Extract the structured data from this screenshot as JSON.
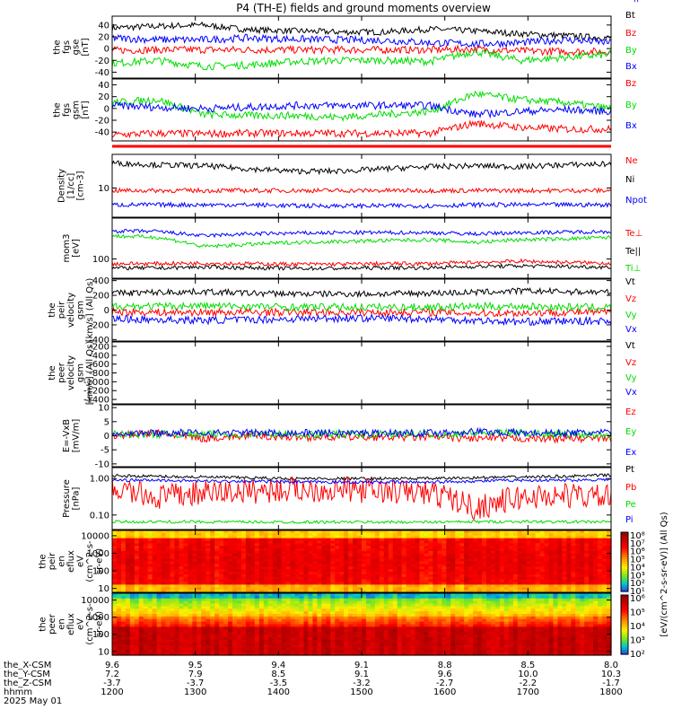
{
  "title": "P4 (TH-E) fields and ground moments overview",
  "colors": {
    "black": "#000000",
    "red": "#ff0000",
    "green": "#00dd00",
    "blue": "#0000ff"
  },
  "chart_data": [
    {
      "type": "line",
      "panel": "fgs_gse",
      "ylabel": [
        "the",
        "fgs",
        "gse",
        "[nT]"
      ],
      "ylim": [
        -50,
        55
      ],
      "ytick_labels": [
        "40",
        "20",
        "0",
        "-20",
        "-40"
      ],
      "ytick_values": [
        40,
        20,
        0,
        -20,
        -40
      ],
      "series": [
        {
          "name": "Bt",
          "color": "black",
          "level": [
            35,
            38,
            40,
            32,
            30,
            28,
            28,
            33,
            30,
            25,
            22,
            18
          ]
        },
        {
          "name": "Bz",
          "color": "red",
          "level": [
            -3,
            -2,
            -2,
            -2,
            -2,
            -2,
            -2,
            -2,
            -1,
            -4,
            -5,
            -5
          ]
        },
        {
          "name": "By",
          "color": "green",
          "level": [
            -25,
            -20,
            -30,
            -28,
            -22,
            -20,
            -20,
            -22,
            -5,
            -20,
            -15,
            -10
          ]
        },
        {
          "name": "Bx",
          "color": "blue",
          "level": [
            18,
            15,
            15,
            18,
            16,
            15,
            14,
            10,
            8,
            10,
            15,
            10
          ]
        }
      ]
    },
    {
      "type": "line",
      "panel": "fgs_gsm",
      "ylabel": [
        "the",
        "fgs",
        "gsm",
        "[nT]"
      ],
      "ylim": [
        -55,
        50
      ],
      "ytick_labels": [
        "40",
        "20",
        "0",
        "-20",
        "-40"
      ],
      "ytick_values": [
        40,
        20,
        0,
        -20,
        -40
      ],
      "series": [
        {
          "name": "Bz",
          "color": "red",
          "level": [
            -45,
            -42,
            -43,
            -42,
            -42,
            -42,
            -42,
            -42,
            -25,
            -32,
            -35,
            -35
          ]
        },
        {
          "name": "By",
          "color": "green",
          "level": [
            10,
            15,
            -10,
            -12,
            -12,
            -15,
            -10,
            -5,
            25,
            15,
            10,
            0
          ]
        },
        {
          "name": "Bx",
          "color": "blue",
          "level": [
            5,
            2,
            0,
            2,
            5,
            5,
            5,
            5,
            -10,
            -5,
            -2,
            -5
          ]
        }
      ]
    },
    {
      "type": "line",
      "panel": "density",
      "ylabel": [
        "Density",
        "[1/cc]",
        "[cm-3]"
      ],
      "log": true,
      "ylim": [
        3,
        40
      ],
      "ytick_labels": [
        "10"
      ],
      "ytick_values": [
        10
      ],
      "series": [
        {
          "name": "Ne",
          "color": "red",
          "level": [
            9,
            9,
            9,
            9,
            9,
            9,
            9,
            9,
            9,
            9,
            9,
            9
          ]
        },
        {
          "name": "Ni",
          "color": "black",
          "level": [
            28,
            26,
            25,
            22,
            20,
            20,
            22,
            24,
            25,
            24,
            26,
            27
          ]
        },
        {
          "name": "Npot",
          "color": "blue",
          "level": [
            5,
            5,
            5,
            5,
            4.8,
            4.8,
            4.8,
            4.8,
            5,
            5,
            5,
            5
          ]
        }
      ]
    },
    {
      "type": "line",
      "panel": "temperature",
      "ylabel": [
        "mom3",
        "[eV]"
      ],
      "log": true,
      "ylim": [
        40,
        700
      ],
      "ytick_labels": [
        "100"
      ],
      "ytick_values": [
        100
      ],
      "series": [
        {
          "name": "Te⊥",
          "color": "red",
          "level": [
            80,
            80,
            82,
            80,
            78,
            78,
            80,
            80,
            85,
            90,
            85,
            82
          ]
        },
        {
          "name": "Te||",
          "color": "black",
          "level": [
            65,
            65,
            68,
            66,
            64,
            64,
            66,
            66,
            70,
            72,
            70,
            68
          ]
        },
        {
          "name": "Ti⊥",
          "color": "green",
          "level": [
            300,
            280,
            180,
            200,
            220,
            230,
            240,
            250,
            220,
            250,
            260,
            280
          ]
        },
        {
          "name": "Ti||",
          "color": "blue",
          "level": [
            380,
            370,
            300,
            330,
            340,
            350,
            350,
            350,
            330,
            350,
            360,
            370
          ]
        }
      ]
    },
    {
      "type": "line",
      "panel": "peir_velocity",
      "ylabel": [
        "the",
        "peir",
        "velocity",
        "gsm",
        "[km/s] (All Qs)"
      ],
      "ylim": [
        -420,
        420
      ],
      "ytick_labels": [
        "400",
        "200",
        "0",
        "-200",
        "-400"
      ],
      "ytick_values": [
        400,
        200,
        0,
        -200,
        -400
      ],
      "series": [
        {
          "name": "Vt",
          "color": "black",
          "level": [
            230,
            240,
            250,
            230,
            220,
            220,
            220,
            230,
            240,
            260,
            250,
            240
          ]
        },
        {
          "name": "Vz",
          "color": "red",
          "level": [
            -20,
            -30,
            -30,
            -30,
            -30,
            -30,
            -30,
            -30,
            -40,
            -40,
            -30,
            -30
          ]
        },
        {
          "name": "Vy",
          "color": "green",
          "level": [
            60,
            50,
            60,
            50,
            40,
            40,
            40,
            40,
            50,
            50,
            40,
            40
          ]
        },
        {
          "name": "Vx",
          "color": "blue",
          "level": [
            -120,
            -130,
            -140,
            -130,
            -120,
            -110,
            -110,
            -120,
            -140,
            -160,
            -150,
            -150
          ]
        }
      ]
    },
    {
      "type": "line",
      "panel": "peer_velocity",
      "ylabel": [
        "the",
        "peer",
        "velocity",
        "gsm",
        "[km/s] (All Qs)"
      ],
      "ylim": [
        -1500,
        -100
      ],
      "ytick_labels": [
        "-200",
        "-400",
        "-600",
        "-800",
        "-1000",
        "-1200",
        "-1400"
      ],
      "ytick_values": [
        -200,
        -400,
        -600,
        -800,
        -1000,
        -1200,
        -1400
      ],
      "series": [
        {
          "name": "Vt",
          "color": "black",
          "level": []
        },
        {
          "name": "Vz",
          "color": "red",
          "level": []
        },
        {
          "name": "Vy",
          "color": "green",
          "level": []
        },
        {
          "name": "Vx",
          "color": "blue",
          "level": []
        }
      ]
    },
    {
      "type": "line",
      "panel": "e_field",
      "ylabel": [
        "E=-VxB",
        "[mV/m]"
      ],
      "ylim": [
        -11,
        11
      ],
      "ytick_labels": [
        "10",
        "5",
        "0",
        "-5",
        "-10"
      ],
      "ytick_values": [
        10,
        5,
        0,
        -5,
        -10
      ],
      "series": [
        {
          "name": "Ez",
          "color": "red",
          "level": [
            0,
            1,
            -1,
            0,
            -0.5,
            -0.5,
            -0.5,
            -0.5,
            -1,
            -1,
            -1,
            -1
          ]
        },
        {
          "name": "Ey",
          "color": "green",
          "level": [
            0.5,
            0.5,
            0.5,
            0.5,
            0.5,
            0.5,
            0.5,
            0.5,
            1,
            1,
            0.5,
            0.5
          ]
        },
        {
          "name": "Ex",
          "color": "blue",
          "level": [
            1,
            1,
            1,
            1,
            1,
            1,
            1,
            1,
            1.5,
            1,
            1,
            1
          ]
        }
      ]
    },
    {
      "type": "line",
      "panel": "pressure",
      "ylabel": [
        "Pressure",
        "[nPa]"
      ],
      "log": true,
      "ylim": [
        0.04,
        2
      ],
      "ytick_labels": [
        "1.00",
        "0.10"
      ],
      "ytick_values": [
        1,
        0.1
      ],
      "series": [
        {
          "name": "Pt",
          "color": "black",
          "level": [
            1.2,
            1.15,
            1.1,
            1.05,
            1.0,
            1.0,
            1.0,
            1.0,
            1.05,
            1.1,
            1.15,
            1.25
          ]
        },
        {
          "name": "Pb",
          "color": "red",
          "level": [
            0.5,
            0.3,
            0.4,
            0.45,
            0.5,
            0.5,
            0.45,
            0.4,
            0.15,
            0.3,
            0.35,
            0.3
          ]
        },
        {
          "name": "Pe",
          "color": "green",
          "level": [
            0.065,
            0.065,
            0.065,
            0.064,
            0.064,
            0.064,
            0.064,
            0.064,
            0.065,
            0.066,
            0.065,
            0.065
          ]
        },
        {
          "name": "Pi",
          "color": "blue",
          "level": [
            0.9,
            0.9,
            0.85,
            0.85,
            0.8,
            0.8,
            0.8,
            0.8,
            0.85,
            0.9,
            0.9,
            0.95
          ]
        }
      ]
    },
    {
      "type": "heatmap",
      "panel": "peir_en_eflux",
      "ylabel": [
        "the",
        "peir",
        "en",
        "eflux",
        "eV",
        "(cm^2-s-",
        "sr-eV)"
      ],
      "log": true,
      "ylim": [
        6,
        20000
      ],
      "ytick_labels": [
        "10000",
        "1000",
        "100",
        "10"
      ],
      "ytick_values": [
        10000,
        1000,
        100,
        10
      ]
    },
    {
      "type": "heatmap",
      "panel": "peer_en_eflux",
      "ylabel": [
        "the",
        "peer",
        "en",
        "eflux",
        "eV",
        "(cm^2-s-",
        "sr-eV)"
      ],
      "log": true,
      "ylim": [
        6,
        25000
      ],
      "ytick_labels": [
        "10000",
        "1000",
        "100",
        "10"
      ],
      "ytick_values": [
        10000,
        1000,
        100,
        10
      ]
    }
  ],
  "colorbar1": {
    "tick_labels": [
      "10⁸",
      "10⁷",
      "10⁶",
      "10⁵",
      "10⁴",
      "10³",
      "10²",
      "10¹"
    ]
  },
  "colorbar2": {
    "tick_labels": [
      "10⁶",
      "10⁵",
      "10⁴",
      "10³",
      "10²"
    ]
  },
  "colorbar_label": "[eV/(cm^2-s-sr-eV)] (All Qs)",
  "x_axis": {
    "row_labels": [
      "the_X-CSM",
      "the_Y-CSM",
      "the_Z-CSM",
      "hhmm",
      "2025 May 01"
    ],
    "columns": [
      {
        "x": "9.6",
        "y": "7.2",
        "z": "-3.7",
        "t": "1200"
      },
      {
        "x": "9.5",
        "y": "7.9",
        "z": "-3.7",
        "t": "1300"
      },
      {
        "x": "9.4",
        "y": "8.5",
        "z": "-3.5",
        "t": "1400"
      },
      {
        "x": "9.1",
        "y": "9.1",
        "z": "-3.2",
        "t": "1500"
      },
      {
        "x": "8.8",
        "y": "9.6",
        "z": "-2.7",
        "t": "1600"
      },
      {
        "x": "8.5",
        "y": "10.0",
        "z": "-2.2",
        "t": "1700"
      },
      {
        "x": "8.0",
        "y": "10.3",
        "z": "-1.7",
        "t": "1800"
      }
    ]
  }
}
